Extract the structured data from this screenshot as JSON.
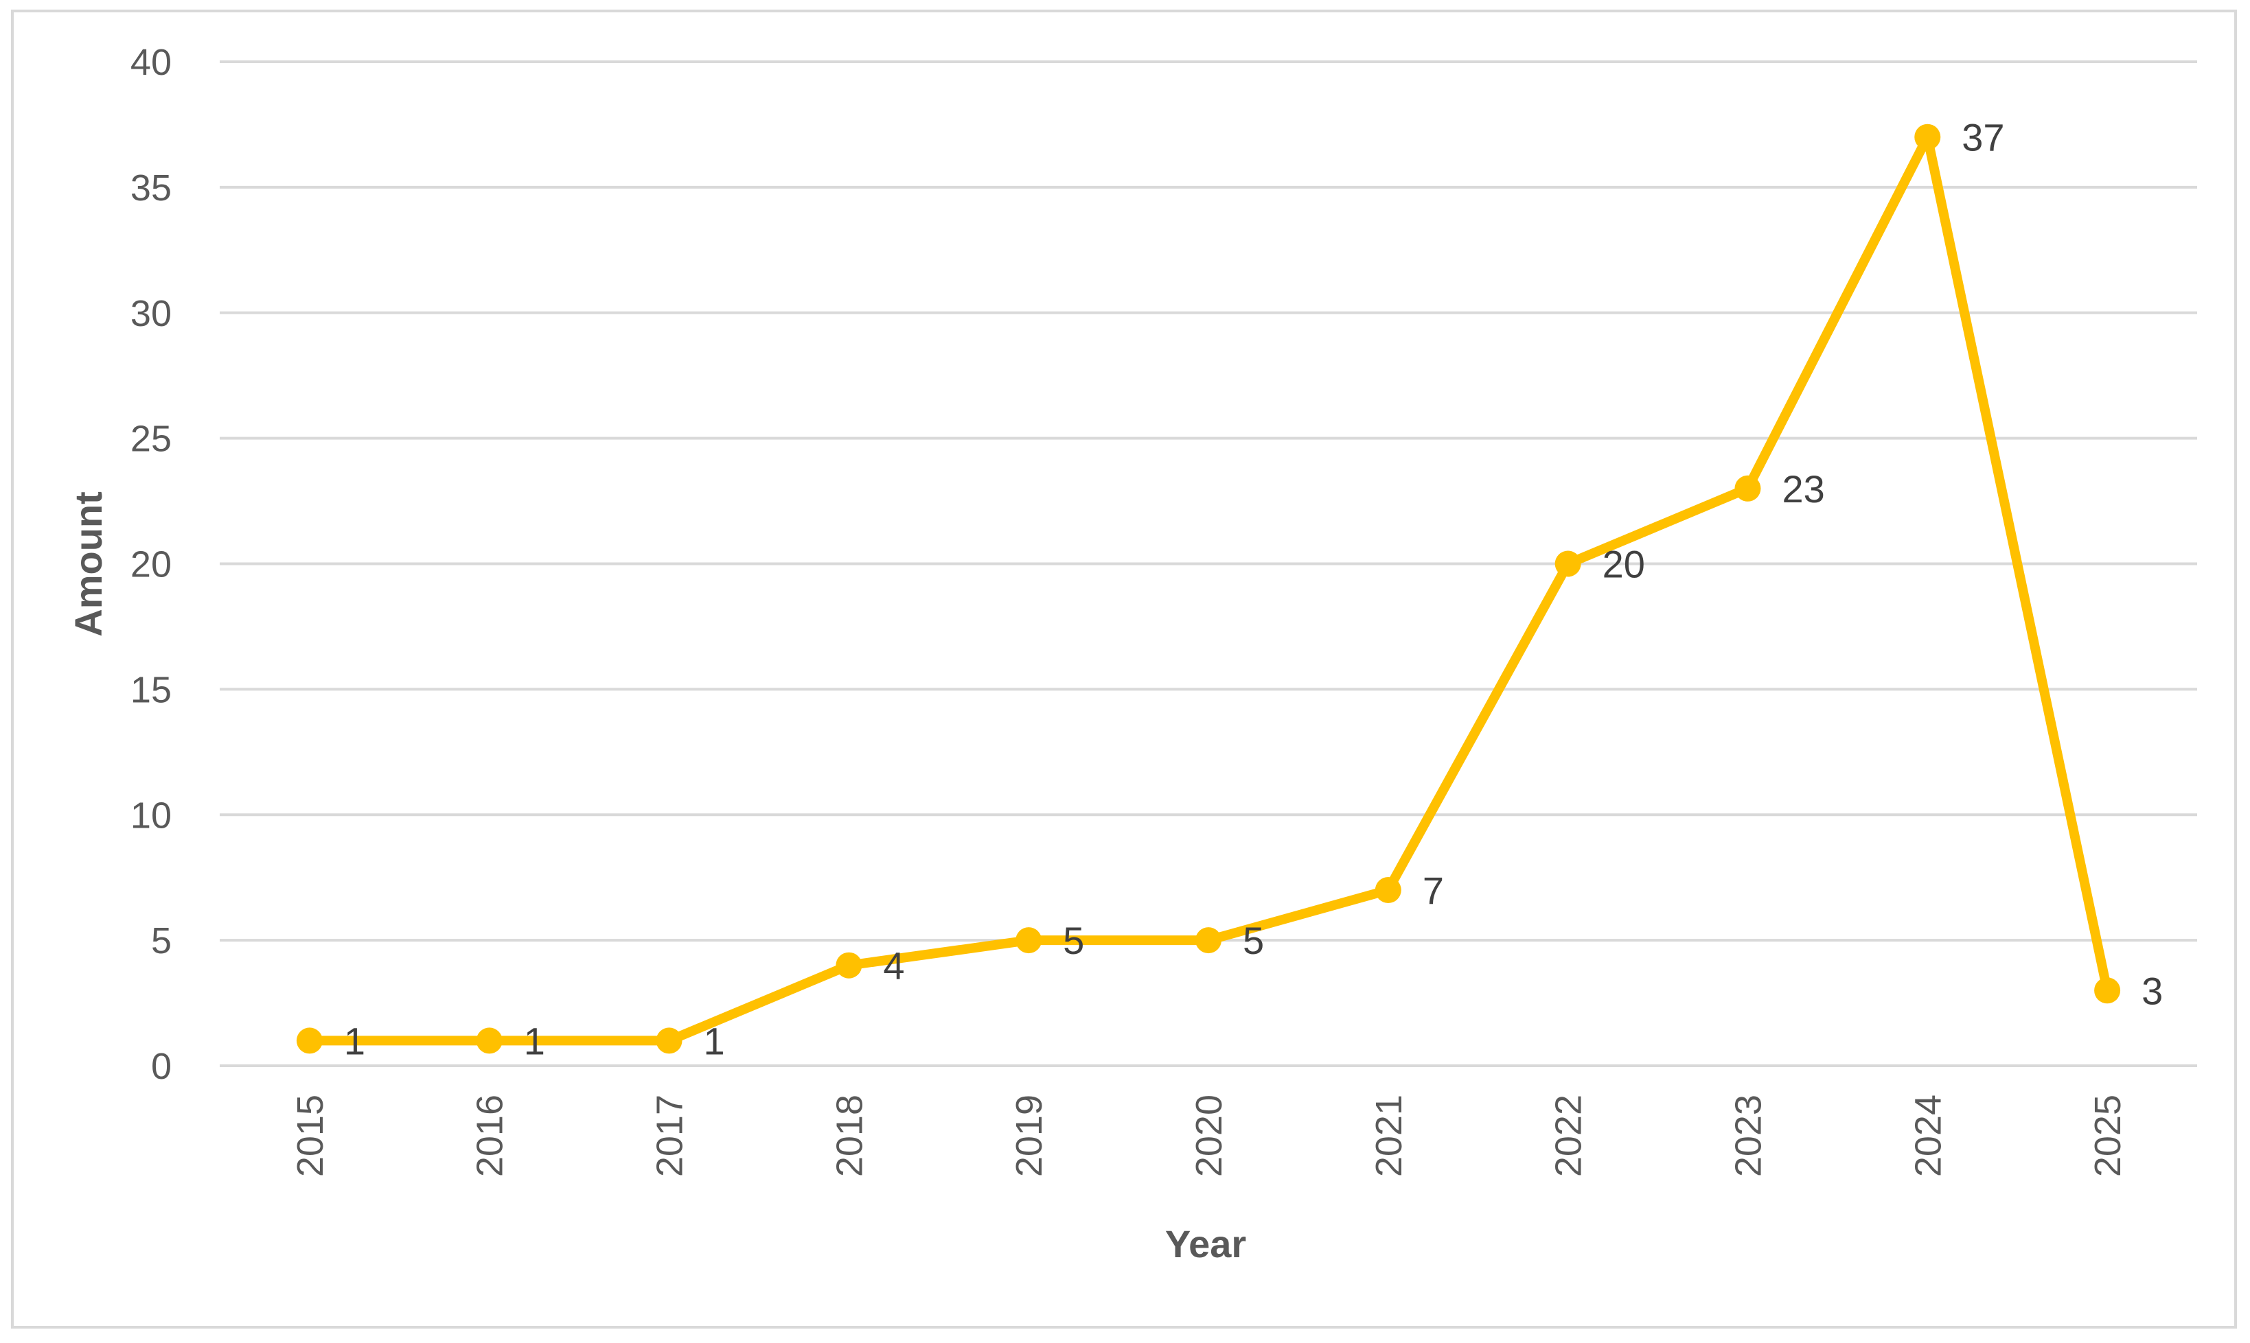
{
  "chart_data": {
    "type": "line",
    "title": "",
    "xlabel": "Year",
    "ylabel": "Amount",
    "categories": [
      "2015",
      "2016",
      "2017",
      "2018",
      "2019",
      "2020",
      "2021",
      "2022",
      "2023",
      "2024",
      "2025"
    ],
    "series": [
      {
        "values": [
          1,
          1,
          1,
          4,
          5,
          5,
          7,
          20,
          23,
          37,
          3
        ],
        "color": "#FFC000"
      }
    ],
    "data_labels": [
      "1",
      "1",
      "1",
      "4",
      "5",
      "5",
      "7",
      "20",
      "23",
      "37",
      "3"
    ],
    "ylim": [
      0,
      40
    ],
    "yticks": [
      "0",
      "5",
      "10",
      "15",
      "20",
      "25",
      "30",
      "35",
      "40"
    ],
    "grid": true,
    "legend": "none",
    "gridline_color": "#d9d9d9",
    "label_color": "#595959"
  }
}
